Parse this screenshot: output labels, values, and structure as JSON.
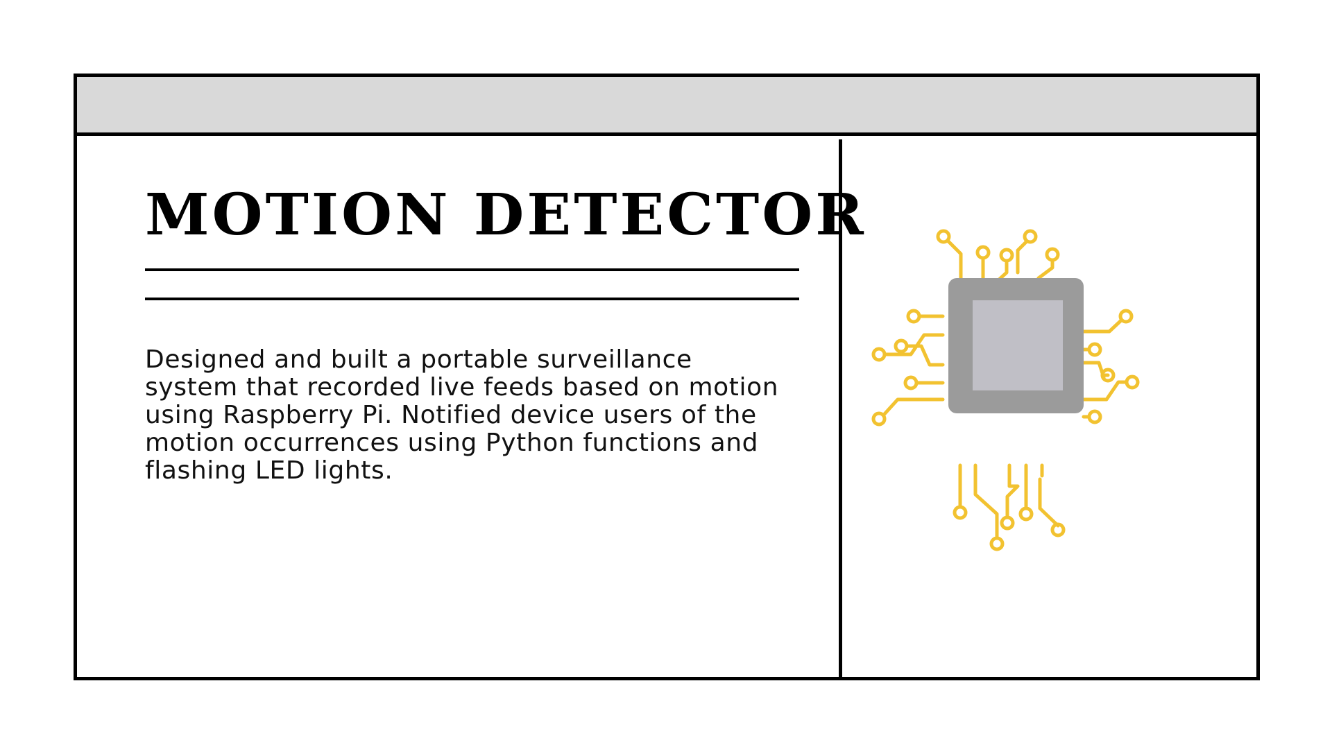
{
  "card": {
    "title": "MOTION DETECTOR",
    "description": "Designed and built a portable surveillance system that recorded live feeds based on motion using Raspberry Pi. Notified device users of the motion occurrences using Python functions and flashing LED lights."
  },
  "illustration": {
    "icon": "microchip-icon",
    "colors": {
      "traces": "#f2c230",
      "chip_body": "#9b9b9b",
      "chip_die": "#c0bfc6"
    }
  }
}
